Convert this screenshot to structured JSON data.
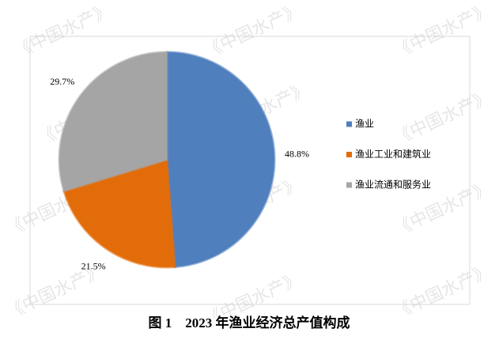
{
  "chart_data": {
    "type": "pie",
    "title": "图 1　2023 年渔业经济总产值构成",
    "watermark": "《中国水产》",
    "categories": [
      "渔业",
      "渔业工业和建筑业",
      "渔业流通和服务业"
    ],
    "values": [
      48.8,
      21.5,
      29.7
    ],
    "value_labels": [
      "48.8%",
      "21.5%",
      "29.7%"
    ],
    "colors": [
      "#4f7fbd",
      "#e36c0a",
      "#a5a5a5"
    ],
    "legend": "right"
  }
}
